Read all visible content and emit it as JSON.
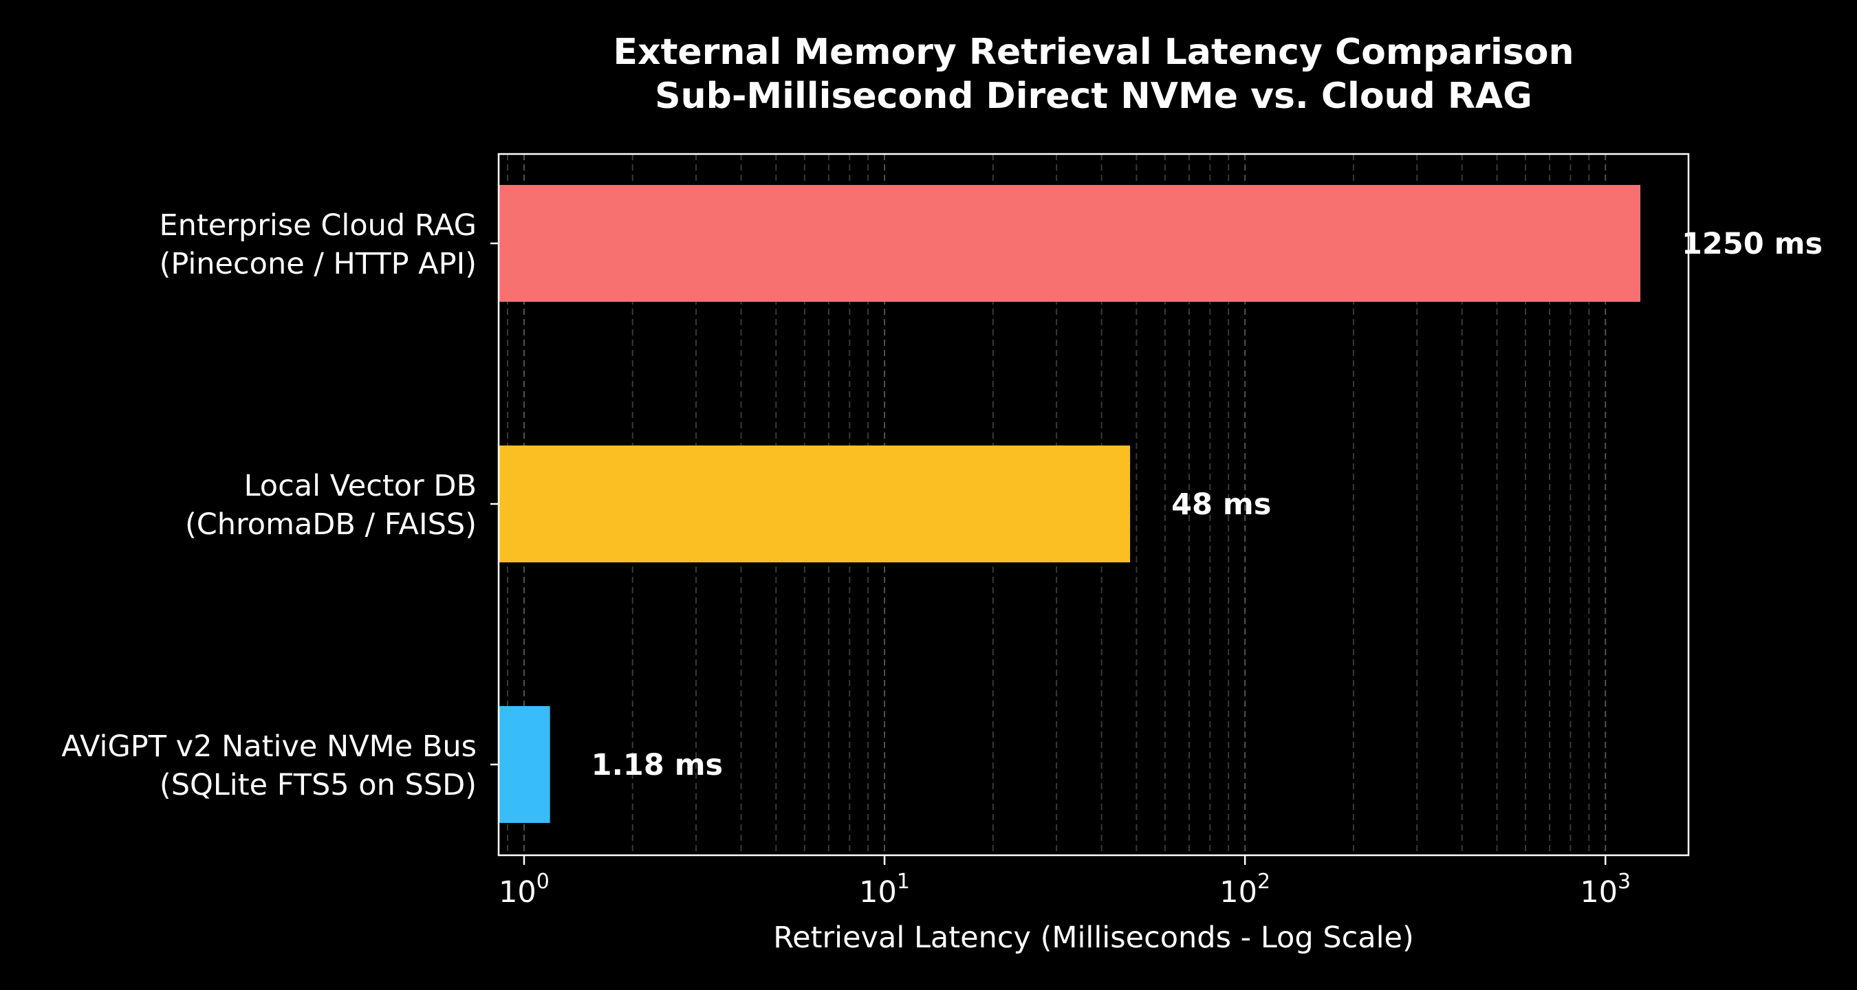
{
  "chart_data": {
    "type": "bar",
    "orientation": "horizontal",
    "title": [
      "External Memory Retrieval Latency Comparison",
      "Sub-Millisecond Direct NVMe vs. Cloud RAG"
    ],
    "xlabel": "Retrieval Latency (Milliseconds - Log Scale)",
    "ylabel": "",
    "xscale": "log",
    "xlim": [
      0.85,
      1700
    ],
    "xticks": [
      {
        "value": 1,
        "base": "10",
        "exp": "0"
      },
      {
        "value": 10,
        "base": "10",
        "exp": "1"
      },
      {
        "value": 100,
        "base": "10",
        "exp": "2"
      },
      {
        "value": 1000,
        "base": "10",
        "exp": "3"
      }
    ],
    "grid": "x (major and minor, dashed)",
    "categories": [
      [
        "AViGPT v2 Native NVMe Bus",
        "(SQLite FTS5 on SSD)"
      ],
      [
        "Local Vector DB",
        "(ChromaDB / FAISS)"
      ],
      [
        "Enterprise Cloud RAG",
        "(Pinecone / HTTP API)"
      ]
    ],
    "values": [
      1.18,
      48,
      1250
    ],
    "value_labels": [
      "1.18 ms",
      "48 ms",
      "1250 ms"
    ],
    "colors": [
      "#38bdf8",
      "#fbbf24",
      "#f87171"
    ],
    "background": "#000000"
  }
}
